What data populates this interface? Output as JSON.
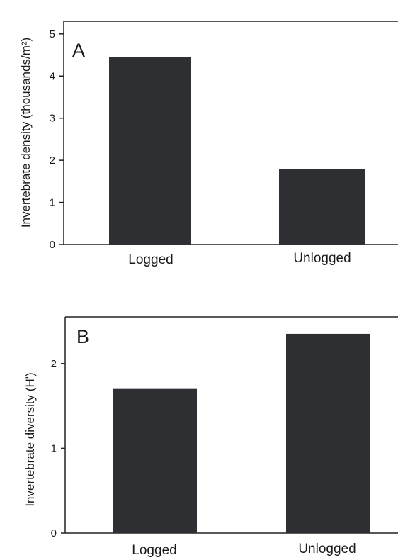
{
  "chart_data": [
    {
      "type": "bar",
      "panel_label": "A",
      "categories": [
        "Logged",
        "Unlogged"
      ],
      "values": [
        4.45,
        1.8
      ],
      "ylabel": "Invertebrate density (thousands/m²)",
      "xlabel": "",
      "ylim": [
        0,
        5.3
      ],
      "yticks": [
        "0",
        "1",
        "2",
        "3",
        "4",
        "5"
      ],
      "grid": false,
      "bar_color": "#2e2f33"
    },
    {
      "type": "bar",
      "panel_label": "B",
      "categories": [
        "Logged",
        "Unlogged"
      ],
      "values": [
        1.7,
        2.35
      ],
      "ylabel": "Invertebrate diversity (H')",
      "xlabel": "",
      "ylim": [
        0,
        2.55
      ],
      "yticks": [
        "0",
        "1",
        "2"
      ],
      "grid": false,
      "bar_color": "#2e2f33"
    }
  ]
}
